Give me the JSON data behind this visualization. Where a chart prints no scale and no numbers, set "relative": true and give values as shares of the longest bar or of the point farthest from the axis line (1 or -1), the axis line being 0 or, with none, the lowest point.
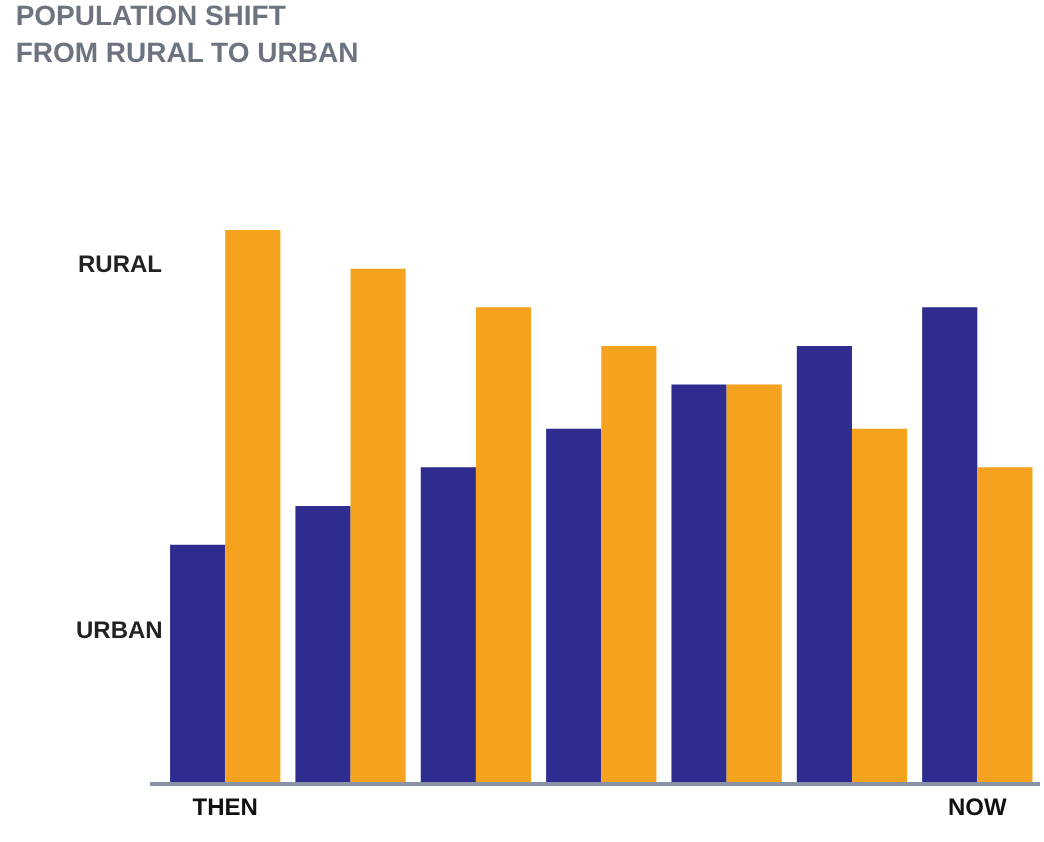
{
  "chart_data": {
    "type": "bar",
    "title": "POPULATION SHIFT\nFROM RURAL TO URBAN",
    "relative": true,
    "legend": false,
    "categories": [
      "THEN",
      null,
      null,
      null,
      null,
      null,
      "NOW"
    ],
    "series": [
      {
        "name": "URBAN",
        "color": "#2e2d8f",
        "values": [
          0.43,
          0.5,
          0.57,
          0.64,
          0.72,
          0.79,
          0.86
        ]
      },
      {
        "name": "RURAL",
        "color": "#f5a31e",
        "values": [
          1,
          0.93,
          0.86,
          0.79,
          0.72,
          0.64,
          0.57
        ]
      }
    ]
  }
}
